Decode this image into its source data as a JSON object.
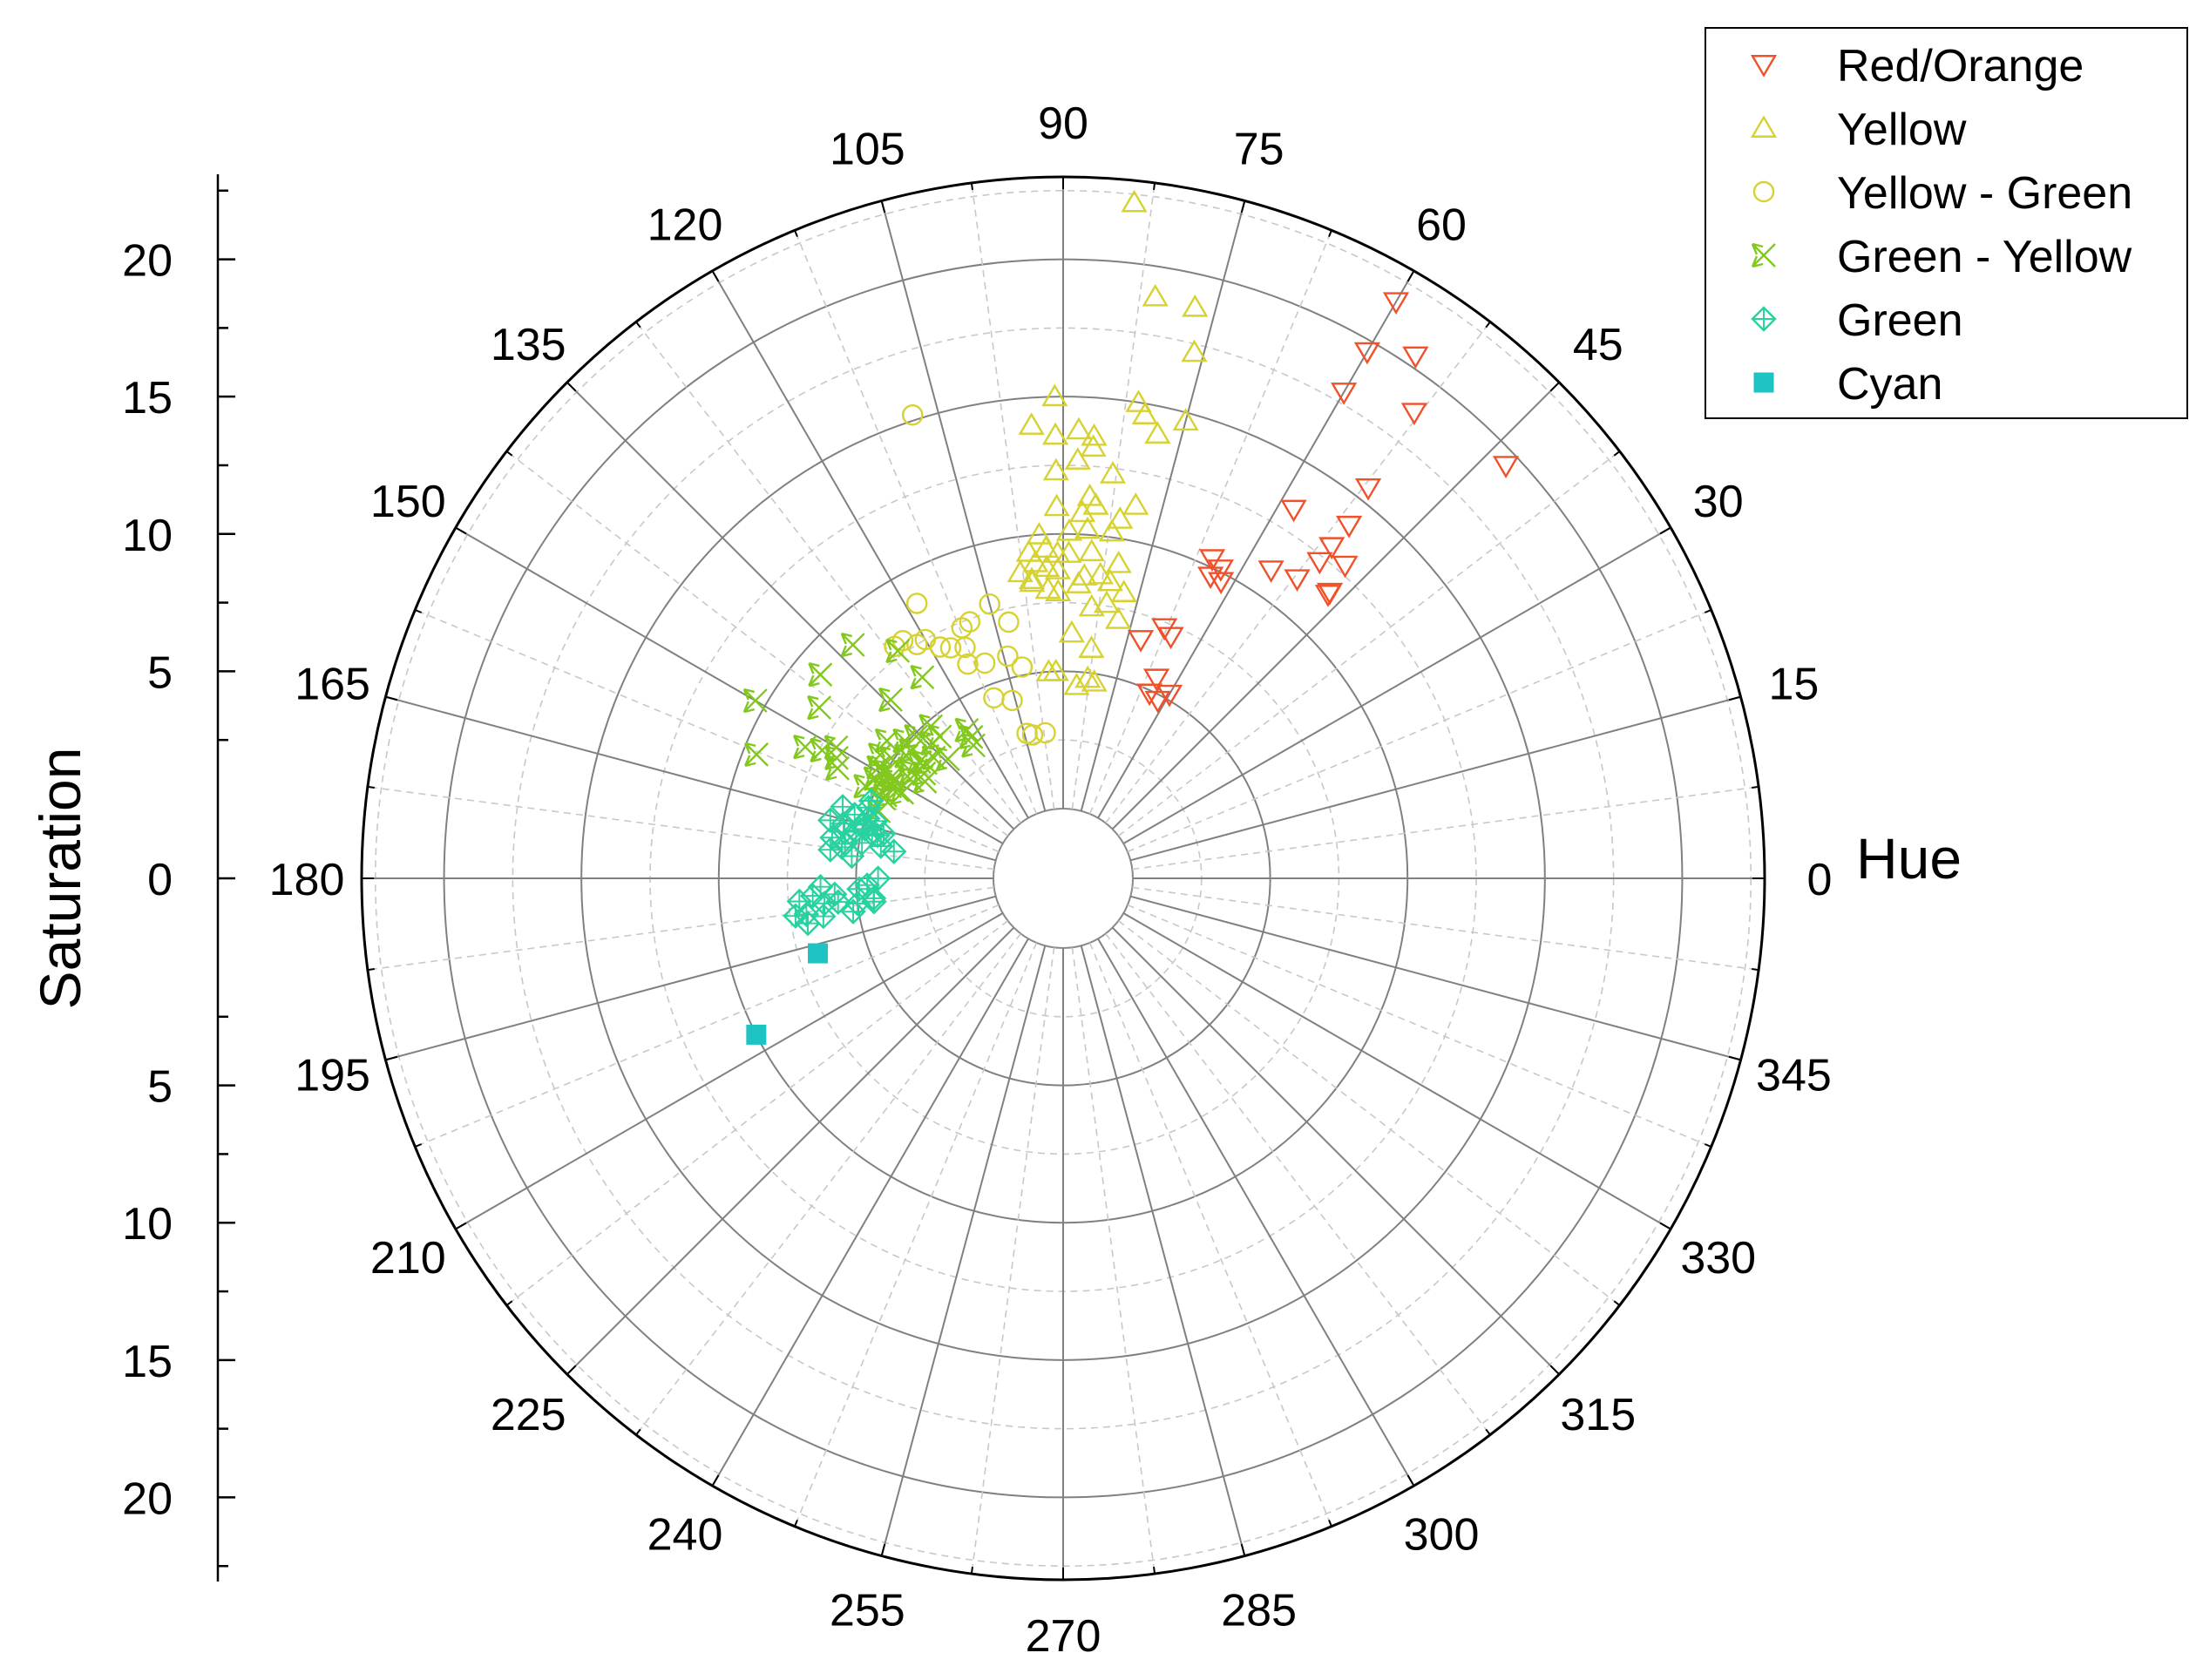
{
  "chart_data": {
    "type": "scatter",
    "subtype": "polar",
    "angular_axis": {
      "title": "Hue",
      "unit": "degrees",
      "range": [
        0,
        360
      ],
      "tick_labels": [
        "0",
        "15",
        "30",
        "45",
        "60",
        "75",
        "90",
        "105",
        "120",
        "135",
        "150",
        "165",
        "180",
        "195",
        "210",
        "225",
        "240",
        "255",
        "270",
        "285",
        "300",
        "315",
        "330",
        "345"
      ]
    },
    "radial_axis": {
      "title": "Saturation",
      "range": [
        0,
        23
      ],
      "gridlines": [
        5,
        10,
        15,
        20
      ],
      "upper_tick_labels": [
        "20",
        "15",
        "10",
        "5",
        "0"
      ],
      "lower_tick_labels": [
        "5",
        "10",
        "15",
        "20"
      ]
    },
    "legend": {
      "position": "top-right"
    },
    "series": [
      {
        "name": "Red/Orange",
        "marker": "triangle-down",
        "color": "#f0502a",
        "points": [
          [
            60,
            21.7
          ],
          [
            56,
            20.4
          ],
          [
            60,
            19.6
          ],
          [
            53,
            18.7
          ],
          [
            43,
            19.5
          ],
          [
            60,
            17.9
          ],
          [
            52,
            15.5
          ],
          [
            51,
            14.0
          ],
          [
            58,
            13.3
          ],
          [
            51,
            13.0
          ],
          [
            48,
            12.8
          ],
          [
            47,
            11.6
          ],
          [
            51,
            12.3
          ],
          [
            47,
            11.7
          ],
          [
            52,
            11.3
          ],
          [
            56,
            11.0
          ],
          [
            65,
            10.3
          ],
          [
            62,
            9.7
          ],
          [
            63,
            10.1
          ],
          [
            64,
            9.7
          ],
          [
            68,
            7.3
          ],
          [
            66,
            7.1
          ],
          [
            72,
            6.6
          ],
          [
            65,
            5.5
          ],
          [
            60,
            5.2
          ],
          [
            62,
            4.8
          ],
          [
            65,
            4.9
          ]
        ]
      },
      {
        "name": "Yellow",
        "marker": "triangle-up",
        "color": "#d6d232",
        "points": [
          [
            84,
            22.2
          ],
          [
            81,
            18.9
          ],
          [
            77,
            18.8
          ],
          [
            76,
            17.2
          ],
          [
            81,
            15.0
          ],
          [
            80,
            14.6
          ],
          [
            75,
            14.7
          ],
          [
            78,
            14.0
          ],
          [
            91,
            15.0
          ],
          [
            94,
            14.0
          ],
          [
            88,
            13.8
          ],
          [
            91,
            13.6
          ],
          [
            86,
            13.2
          ],
          [
            86,
            13.6
          ],
          [
            88,
            12.7
          ],
          [
            91,
            12.3
          ],
          [
            83,
            12.3
          ],
          [
            86,
            11.4
          ],
          [
            79,
            11.3
          ],
          [
            91,
            11.0
          ],
          [
            85,
            11.1
          ],
          [
            87,
            10.8
          ],
          [
            81,
            10.7
          ],
          [
            82,
            10.2
          ],
          [
            86,
            10.2
          ],
          [
            89,
            10.1
          ],
          [
            94,
            10.0
          ],
          [
            96,
            9.4
          ],
          [
            95,
            9.0
          ],
          [
            93,
            9.5
          ],
          [
            91,
            9.3
          ],
          [
            89,
            9.3
          ],
          [
            85,
            9.4
          ],
          [
            80,
            9.1
          ],
          [
            93,
            8.8
          ],
          [
            91,
            8.7
          ],
          [
            98,
            8.7
          ],
          [
            86,
            8.5
          ],
          [
            81,
            8.4
          ],
          [
            83,
            8.6
          ],
          [
            96,
            8.4
          ],
          [
            87,
            8.2
          ],
          [
            96,
            8.3
          ],
          [
            93,
            8.0
          ],
          [
            91,
            7.9
          ],
          [
            81,
            7.6
          ],
          [
            78,
            7.1
          ],
          [
            84,
            7.4
          ],
          [
            78,
            8.1
          ],
          [
            88,
            6.4
          ],
          [
            83,
            5.9
          ],
          [
            94,
            5.0
          ],
          [
            92,
            5.0
          ],
          [
            83,
            4.8
          ],
          [
            86,
            4.5
          ],
          [
            81,
            4.7
          ]
        ]
      },
      {
        "name": "Yellow - Green",
        "marker": "circle",
        "color": "#d6d232",
        "points": [
          [
            108,
            15.2
          ],
          [
            118,
            8.8
          ],
          [
            126,
            7.9
          ],
          [
            124,
            7.9
          ],
          [
            122,
            7.5
          ],
          [
            120,
            7.5
          ],
          [
            118,
            7.0
          ],
          [
            116,
            6.8
          ],
          [
            112,
            7.3
          ],
          [
            110,
            7.4
          ],
          [
            105,
            7.8
          ],
          [
            113,
            6.6
          ],
          [
            114,
            6.0
          ],
          [
            102,
            7.0
          ],
          [
            110,
            5.8
          ],
          [
            104,
            5.8
          ],
          [
            101,
            5.3
          ],
          [
            111,
            4.5
          ],
          [
            106,
            4.2
          ],
          [
            97,
            2.8
          ],
          [
            104,
            2.9
          ],
          [
            102,
            2.8
          ]
        ]
      },
      {
        "name": "Green - Yellow",
        "marker": "x-arrow",
        "color": "#82c81e",
        "points": [
          [
            140,
            9.0
          ],
          [
            132,
            8.9
          ],
          [
            150,
            10.4
          ],
          [
            126,
            7.7
          ],
          [
            145,
            8.3
          ],
          [
            125,
            6.4
          ],
          [
            134,
            6.5
          ],
          [
            158,
            9.5
          ],
          [
            153,
            8.0
          ],
          [
            152,
            7.4
          ],
          [
            150,
            7.0
          ],
          [
            131,
            4.8
          ],
          [
            152,
            6.8
          ],
          [
            154,
            6.6
          ],
          [
            139,
            5.1
          ],
          [
            145,
            5.1
          ],
          [
            142,
            5.6
          ],
          [
            140,
            4.7
          ],
          [
            131,
            4.3
          ],
          [
            134,
            4.3
          ],
          [
            136,
            4.9
          ],
          [
            155,
            5.4
          ],
          [
            152,
            5.2
          ],
          [
            149,
            5.3
          ],
          [
            146,
            5.5
          ],
          [
            140,
            4.0
          ],
          [
            141,
            4.2
          ],
          [
            145,
            4.2
          ],
          [
            147,
            4.1
          ],
          [
            143,
            3.8
          ],
          [
            142,
            4.7
          ],
          [
            145,
            3.6
          ],
          [
            150,
            4.6
          ],
          [
            152,
            4.1
          ],
          [
            152,
            4.3
          ],
          [
            152,
            4.6
          ],
          [
            155,
            4.6
          ],
          [
            149,
            4.7
          ],
          [
            149,
            5.0
          ],
          [
            123,
            3.9
          ],
          [
            123,
            3.6
          ],
          [
            124,
            3.3
          ],
          [
            134,
            3.5
          ],
          [
            137,
            3.9
          ],
          [
            160,
            4.6
          ],
          [
            156,
            4.6
          ]
        ]
      },
      {
        "name": "Green",
        "marker": "diamond-plus",
        "color": "#28d2a0",
        "points": [
          [
            166,
            6.2
          ],
          [
            162,
            5.9
          ],
          [
            158,
            5.0
          ],
          [
            173,
            6.0
          ],
          [
            170,
            6.0
          ],
          [
            166,
            5.7
          ],
          [
            163,
            5.4
          ],
          [
            160,
            5.0
          ],
          [
            171,
            5.5
          ],
          [
            167,
            5.2
          ],
          [
            165,
            5.0
          ],
          [
            163,
            4.9
          ],
          [
            166,
            4.9
          ],
          [
            167,
            4.4
          ],
          [
            163,
            4.6
          ],
          [
            167,
            4.6
          ],
          [
            170,
            4.9
          ],
          [
            170,
            4.2
          ],
          [
            171,
            3.7
          ],
          [
            174,
            5.2
          ],
          [
            172,
            5.6
          ],
          [
            168,
            5.6
          ],
          [
            166,
            4.2
          ],
          [
            184,
            5.8
          ],
          [
            184,
            6.6
          ],
          [
            182,
            6.3
          ],
          [
            185,
            7.1
          ],
          [
            190,
            6.9
          ],
          [
            189,
            6.3
          ],
          [
            188,
            6.9
          ],
          [
            186,
            6.2
          ],
          [
            186,
            5.7
          ],
          [
            187,
            5.0
          ],
          [
            182,
            4.6
          ],
          [
            183,
            4.9
          ],
          [
            189,
            5.2
          ],
          [
            187,
            4.4
          ],
          [
            187,
            4.4
          ],
          [
            188,
            7.3
          ],
          [
            180,
            4.2
          ],
          [
            186,
            4.4
          ]
        ]
      },
      {
        "name": "Cyan",
        "marker": "square",
        "color": "#1ec3c3",
        "points": [
          [
            197,
            6.8
          ],
          [
            207,
            10.0
          ]
        ]
      }
    ]
  }
}
